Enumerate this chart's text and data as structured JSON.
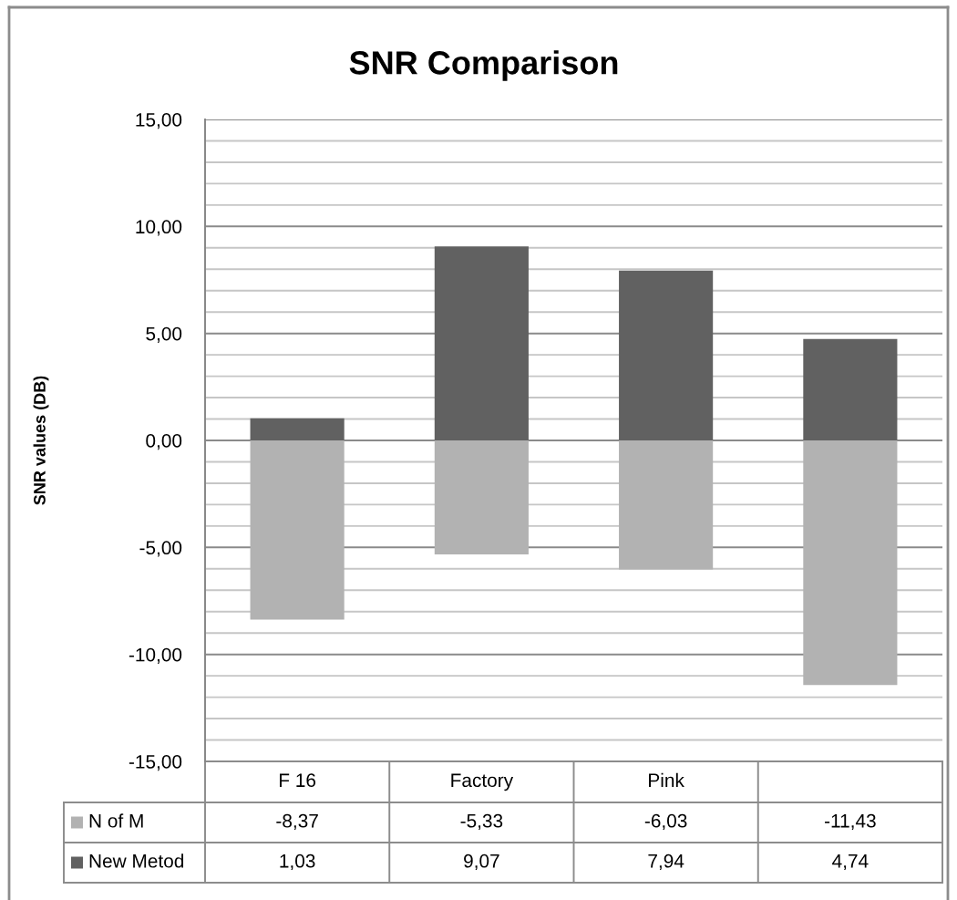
{
  "chart_data": {
    "type": "bar",
    "title": "SNR Comparison",
    "ylabel": "SNR values (DB)",
    "categories": [
      "F 16",
      "Factory",
      "Pink",
      null
    ],
    "stacked": true,
    "series": [
      {
        "name": "N of M",
        "color": "#b2b2b2",
        "values": [
          -8.37,
          -5.33,
          -6.03,
          -11.43
        ],
        "value_labels": [
          "-8,37",
          "-5,33",
          "-6,03",
          "-11,43"
        ]
      },
      {
        "name": "New Metod",
        "color": "#616161",
        "values": [
          1.03,
          9.07,
          7.94,
          4.74
        ],
        "value_labels": [
          "1,03",
          "9,07",
          "7,94",
          "4,74"
        ]
      }
    ],
    "ylim": [
      -15,
      15
    ],
    "yticks": [
      {
        "value": -15,
        "label": "-15,00"
      },
      {
        "value": -14,
        "label": null
      },
      {
        "value": -13,
        "label": null
      },
      {
        "value": -12,
        "label": null
      },
      {
        "value": -11,
        "label": null
      },
      {
        "value": -10,
        "label": "-10,00"
      },
      {
        "value": -9,
        "label": null
      },
      {
        "value": -8,
        "label": null
      },
      {
        "value": -7,
        "label": null
      },
      {
        "value": -6,
        "label": null
      },
      {
        "value": -5,
        "label": "-5,00"
      },
      {
        "value": -4,
        "label": null
      },
      {
        "value": -3,
        "label": null
      },
      {
        "value": -2,
        "label": null
      },
      {
        "value": -1,
        "label": null
      },
      {
        "value": 0,
        "label": "0,00"
      },
      {
        "value": 1,
        "label": null
      },
      {
        "value": 2,
        "label": null
      },
      {
        "value": 3,
        "label": null
      },
      {
        "value": 4,
        "label": null
      },
      {
        "value": 5,
        "label": "5,00"
      },
      {
        "value": 6,
        "label": null
      },
      {
        "value": 7,
        "label": null
      },
      {
        "value": 8,
        "label": null
      },
      {
        "value": 9,
        "label": null
      },
      {
        "value": 10,
        "label": "10,00"
      },
      {
        "value": 11,
        "label": null
      },
      {
        "value": 12,
        "label": null
      },
      {
        "value": 13,
        "label": null
      },
      {
        "value": 14,
        "label": null
      },
      {
        "value": 15,
        "label": "15,00"
      }
    ],
    "grid": "y",
    "legend": "bottom"
  }
}
